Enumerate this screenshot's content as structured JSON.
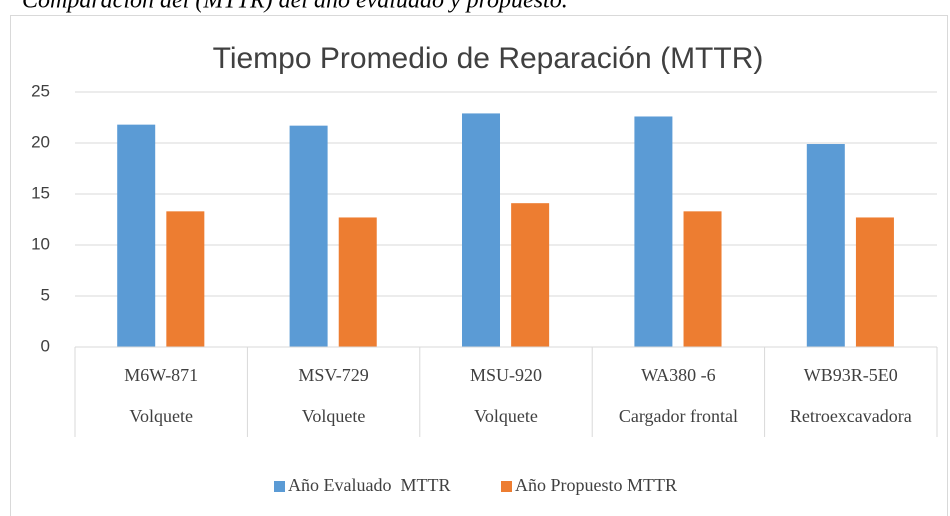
{
  "chart_data": {
    "type": "bar",
    "caption": "Comparación del (MTTR) del año evaluado y propuesto.",
    "title": "Tiempo Promedio de Reparación (MTTR)",
    "categories": [
      [
        "M6W-871",
        "Volquete"
      ],
      [
        "MSV-729",
        "Volquete"
      ],
      [
        "MSU-920",
        "Volquete"
      ],
      [
        "WA380 -6",
        "Cargador frontal"
      ],
      [
        "WB93R-5E0",
        "Retroexcavadora"
      ]
    ],
    "series": [
      {
        "name": "Año Evaluado  MTTR",
        "color": "#5b9bd5",
        "values": [
          21.8,
          21.7,
          22.9,
          22.6,
          19.9
        ]
      },
      {
        "name": "Año Propuesto MTTR",
        "color": "#ed7d31",
        "values": [
          13.3,
          12.7,
          14.1,
          13.3,
          12.7
        ]
      }
    ],
    "ylim": [
      0,
      25
    ],
    "yticks": [
      0,
      5,
      10,
      15,
      20,
      25
    ],
    "grid": true,
    "legend": "bottom"
  }
}
